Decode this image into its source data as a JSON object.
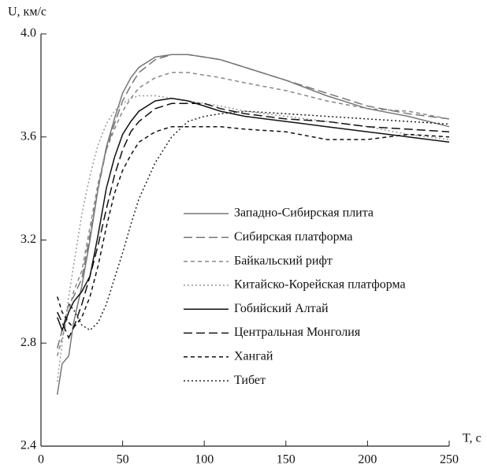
{
  "chart_data": {
    "type": "line",
    "xlabel": "T, с",
    "ylabel": "U, км/с",
    "x": [
      10,
      13,
      17,
      20,
      25,
      30,
      35,
      40,
      45,
      50,
      55,
      60,
      70,
      80,
      90,
      100,
      110,
      125,
      150,
      175,
      200,
      225,
      250
    ],
    "xlim": [
      0,
      250
    ],
    "xticks": [
      0,
      50,
      100,
      150,
      200,
      250
    ],
    "ylim": [
      2.4,
      4.0
    ],
    "yticks": [
      2.4,
      2.8,
      3.2,
      3.6,
      {
        "value": 4.0,
        "label": "4.0"
      }
    ],
    "legend": "center",
    "series": [
      {
        "name": "Западно-Сибирская плита",
        "color": "#777777",
        "dash": "solid",
        "values": [
          2.6,
          2.72,
          2.75,
          2.88,
          3.02,
          3.2,
          3.4,
          3.56,
          3.67,
          3.77,
          3.83,
          3.87,
          3.91,
          3.92,
          3.92,
          3.91,
          3.9,
          3.87,
          3.82,
          3.76,
          3.71,
          3.68,
          3.64
        ]
      },
      {
        "name": "Сибирская платформа",
        "color": "#777777",
        "dash": "long-dash",
        "values": [
          2.78,
          2.85,
          2.95,
          2.98,
          3.05,
          3.22,
          3.4,
          3.55,
          3.65,
          3.74,
          3.8,
          3.85,
          3.9,
          3.92,
          3.92,
          3.91,
          3.9,
          3.87,
          3.82,
          3.77,
          3.72,
          3.69,
          3.67
        ]
      },
      {
        "name": "Байкальский рифт",
        "color": "#888888",
        "dash": "dash",
        "values": [
          2.75,
          2.82,
          2.92,
          3.0,
          3.08,
          3.25,
          3.42,
          3.55,
          3.63,
          3.7,
          3.75,
          3.79,
          3.83,
          3.85,
          3.85,
          3.84,
          3.83,
          3.81,
          3.78,
          3.74,
          3.71,
          3.7,
          3.67
        ]
      },
      {
        "name": "Китайско-Корейская платформа",
        "color": "#999999",
        "dash": "dot",
        "values": [
          2.65,
          2.8,
          2.98,
          3.1,
          3.3,
          3.45,
          3.57,
          3.65,
          3.7,
          3.73,
          3.75,
          3.76,
          3.76,
          3.75,
          3.74,
          3.73,
          3.72,
          3.7,
          3.68,
          3.66,
          3.64,
          3.61,
          3.59
        ]
      },
      {
        "name": "Гобийский Алтай",
        "color": "#111111",
        "dash": "solid",
        "values": [
          2.9,
          2.85,
          2.92,
          2.96,
          3.0,
          3.06,
          3.22,
          3.4,
          3.52,
          3.61,
          3.66,
          3.7,
          3.74,
          3.75,
          3.74,
          3.72,
          3.7,
          3.68,
          3.66,
          3.64,
          3.62,
          3.6,
          3.58
        ]
      },
      {
        "name": "Центральная Монголия",
        "color": "#111111",
        "dash": "long-dash",
        "values": [
          2.92,
          2.88,
          2.82,
          2.86,
          2.95,
          3.06,
          3.18,
          3.32,
          3.45,
          3.55,
          3.62,
          3.66,
          3.71,
          3.73,
          3.73,
          3.73,
          3.71,
          3.69,
          3.67,
          3.66,
          3.64,
          3.63,
          3.62
        ]
      },
      {
        "name": "Хангай",
        "color": "#111111",
        "dash": "dash",
        "values": [
          2.98,
          2.92,
          2.88,
          2.86,
          2.9,
          2.98,
          3.1,
          3.25,
          3.38,
          3.47,
          3.53,
          3.58,
          3.62,
          3.64,
          3.64,
          3.64,
          3.64,
          3.63,
          3.62,
          3.59,
          3.59,
          3.61,
          3.6
        ]
      },
      {
        "name": "Тибет",
        "color": "#222222",
        "dash": "dot",
        "values": [
          null,
          null,
          2.95,
          2.93,
          2.87,
          2.85,
          2.88,
          2.95,
          3.05,
          3.15,
          3.26,
          3.36,
          3.5,
          3.6,
          3.66,
          3.68,
          3.69,
          3.7,
          3.69,
          3.68,
          3.67,
          3.66,
          3.65
        ]
      }
    ]
  }
}
